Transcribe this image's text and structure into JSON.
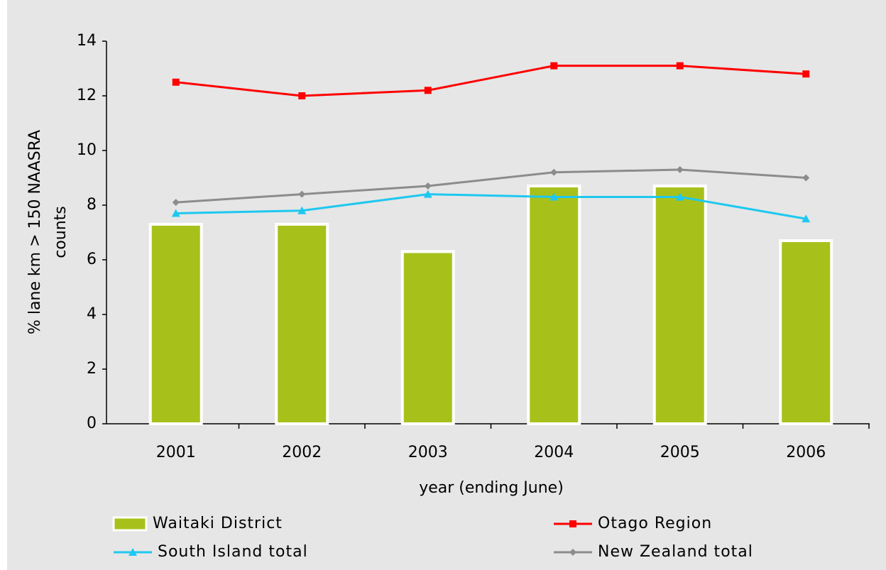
{
  "chart_data": {
    "type": "bar",
    "ylabel": [
      "% lane km > 150 NAASRA",
      "counts"
    ],
    "xlabel": "year (ending June)",
    "categories": [
      "2001",
      "2002",
      "2003",
      "2004",
      "2005",
      "2006"
    ],
    "series": [
      {
        "name": "Waitaki District",
        "type": "bar",
        "color": "#a8c11a",
        "values": [
          7.3,
          7.3,
          6.3,
          8.7,
          8.7,
          6.7
        ]
      },
      {
        "name": "Otago Region",
        "type": "line",
        "marker": "square",
        "color": "#ff0000",
        "values": [
          12.5,
          12.0,
          12.2,
          13.1,
          13.1,
          12.8
        ]
      },
      {
        "name": "South Island total",
        "type": "line",
        "marker": "triangle",
        "color": "#1ec8f0",
        "values": [
          7.7,
          7.8,
          8.4,
          8.3,
          8.3,
          7.5
        ]
      },
      {
        "name": "New Zealand total",
        "type": "line",
        "marker": "diamond",
        "color": "#8c8c8c",
        "values": [
          8.1,
          8.4,
          8.7,
          9.2,
          9.3,
          9.0
        ]
      }
    ],
    "ylim": [
      0,
      14
    ],
    "yticks": [
      0,
      2,
      4,
      6,
      8,
      10,
      12,
      14
    ],
    "grid": false
  }
}
